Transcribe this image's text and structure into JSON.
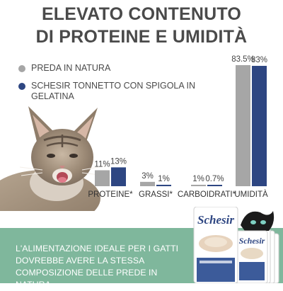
{
  "title": {
    "line1": "ELEVATO CONTENUTO",
    "line2": "DI PROTEINE E UMIDITÀ"
  },
  "legend": [
    {
      "label": "PREDA IN NATURA",
      "color": "#a6a6a6"
    },
    {
      "label": "SCHESIR TONNETTO CON SPIGOLA IN GELATINA",
      "color": "#2e4682"
    }
  ],
  "chart_data": {
    "type": "bar",
    "categories": [
      "PROTEINE*",
      "GRASSI*",
      "CARBOIDRATI*",
      "UMIDITÀ"
    ],
    "series": [
      {
        "name": "PREDA IN NATURA",
        "color": "#a6a6a6",
        "values": [
          11,
          3,
          1,
          83.5
        ],
        "labels": [
          "11%",
          "3%",
          "1%",
          "83.5%"
        ]
      },
      {
        "name": "SCHESIR TONNETTO CON SPIGOLA IN GELATINA",
        "color": "#2e4682",
        "values": [
          13,
          1,
          0.7,
          83
        ],
        "labels": [
          "13%",
          "1%",
          "0.7%",
          "83%"
        ]
      }
    ],
    "ylim": [
      0,
      83.5
    ],
    "grid": false,
    "legend_position": "top-left"
  },
  "footer": {
    "text": "L'ALIMENTAZIONE IDEALE PER I GATTI DOVREBBE AVERE LA STESSA COMPOSIZIONE DELLE PREDE IN NATURA",
    "background": "#7fb79c"
  },
  "products": {
    "brand": "Schesir",
    "packaging_color": "#ffffff",
    "accent_color": "#2e4682"
  }
}
